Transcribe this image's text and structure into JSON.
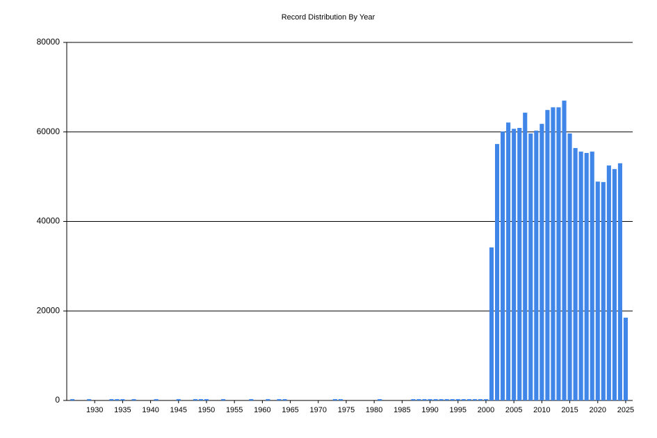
{
  "chart_data": {
    "type": "bar",
    "title": "Record Distribution By Year",
    "x": [
      1926,
      1929,
      1933,
      1934,
      1935,
      1937,
      1941,
      1945,
      1948,
      1949,
      1950,
      1953,
      1958,
      1961,
      1963,
      1964,
      1973,
      1974,
      1981,
      1987,
      1988,
      1989,
      1990,
      1991,
      1992,
      1993,
      1994,
      1995,
      1996,
      1997,
      1998,
      1999,
      2000,
      2001,
      2002,
      2003,
      2004,
      2005,
      2006,
      2007,
      2008,
      2009,
      2010,
      2011,
      2012,
      2013,
      2014,
      2015,
      2016,
      2017,
      2018,
      2019,
      2020,
      2021,
      2022,
      2023,
      2024,
      2025
    ],
    "values": [
      300,
      300,
      300,
      300,
      300,
      300,
      300,
      300,
      300,
      300,
      300,
      300,
      300,
      300,
      300,
      300,
      300,
      300,
      300,
      300,
      300,
      300,
      300,
      300,
      300,
      300,
      300,
      300,
      300,
      300,
      300,
      300,
      300,
      34200,
      57300,
      60100,
      62100,
      60700,
      60900,
      64300,
      59650,
      60300,
      61800,
      64900,
      65500,
      65500,
      67000,
      59650,
      56400,
      55600,
      55300,
      55600,
      48900,
      48800,
      52500,
      51700,
      53000,
      18500
    ],
    "color": "#3f86e8",
    "xlim": [
      1925,
      2026
    ],
    "xticks": [
      1930,
      1935,
      1940,
      1945,
      1950,
      1955,
      1960,
      1965,
      1970,
      1975,
      1980,
      1985,
      1990,
      1995,
      2000,
      2005,
      2010,
      2015,
      2020,
      2025
    ],
    "ylim": [
      0,
      80000
    ],
    "yticks": [
      0,
      20000,
      40000,
      60000,
      80000
    ],
    "grid": true
  }
}
